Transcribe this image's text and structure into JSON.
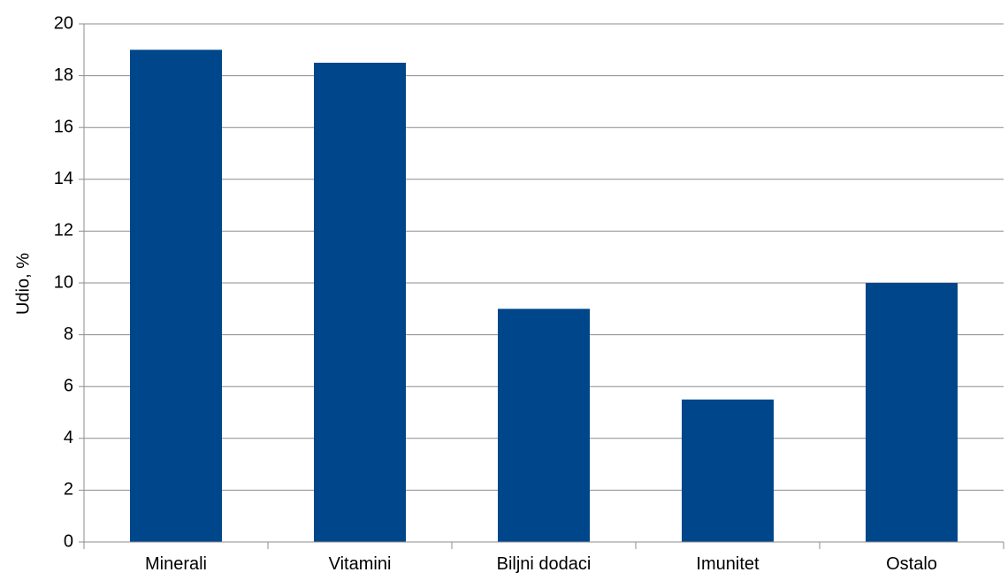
{
  "chart_data": {
    "type": "bar",
    "categories": [
      "Minerali",
      "Vitamini",
      "Biljni dodaci",
      "Imunitet",
      "Ostalo"
    ],
    "values": [
      19,
      18.5,
      9,
      5.5,
      10
    ],
    "title": "",
    "xlabel": "",
    "ylabel": "Udio, %",
    "ylim": [
      0,
      20
    ],
    "yticks": [
      0,
      2,
      4,
      6,
      8,
      10,
      12,
      14,
      16,
      18,
      20
    ],
    "grid": true,
    "legend": "none",
    "bar_color": "#00468B",
    "grid_color": "#8C8C8C"
  }
}
